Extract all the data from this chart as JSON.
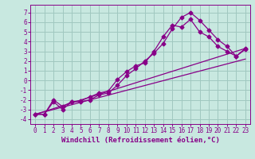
{
  "xlabel": "Windchill (Refroidissement éolien,°C)",
  "bg_color": "#c8e8e0",
  "grid_color": "#a0c8c0",
  "line_color": "#880088",
  "xlim": [
    -0.5,
    23.5
  ],
  "ylim": [
    -4.5,
    7.8
  ],
  "xticks": [
    0,
    1,
    2,
    3,
    4,
    5,
    6,
    7,
    8,
    9,
    10,
    11,
    12,
    13,
    14,
    15,
    16,
    17,
    18,
    19,
    20,
    21,
    22,
    23
  ],
  "yticks": [
    -4,
    -3,
    -2,
    -1,
    0,
    1,
    2,
    3,
    4,
    5,
    6,
    7
  ],
  "line1_x": [
    0,
    1,
    2,
    3,
    4,
    5,
    6,
    7,
    8,
    9,
    10,
    11,
    12,
    13,
    14,
    15,
    16,
    17,
    18,
    19,
    20,
    21,
    22,
    23
  ],
  "line1_y": [
    -3.5,
    -3.5,
    -2.2,
    -3.0,
    -2.2,
    -2.1,
    -1.7,
    -1.3,
    -1.1,
    0.1,
    0.9,
    1.5,
    1.8,
    3.0,
    4.5,
    5.7,
    5.5,
    6.3,
    5.0,
    4.5,
    3.5,
    3.0,
    2.5,
    3.3
  ],
  "line2_x": [
    0,
    1,
    2,
    3,
    4,
    5,
    6,
    7,
    8,
    9,
    10,
    11,
    12,
    13,
    14,
    15,
    16,
    17,
    18,
    19,
    20,
    21,
    22,
    23
  ],
  "line2_y": [
    -3.5,
    -3.5,
    -2.0,
    -2.7,
    -2.2,
    -2.2,
    -2.0,
    -1.5,
    -1.3,
    -0.5,
    0.5,
    1.2,
    2.0,
    2.8,
    3.8,
    5.3,
    6.5,
    7.0,
    6.2,
    5.2,
    4.2,
    3.5,
    2.5,
    3.2
  ],
  "line3_x": [
    0,
    23
  ],
  "line3_y": [
    -3.5,
    3.3
  ],
  "line4_x": [
    0,
    23
  ],
  "line4_y": [
    -3.5,
    2.2
  ],
  "tick_font_size": 5.5,
  "xlabel_font_size": 6.5
}
